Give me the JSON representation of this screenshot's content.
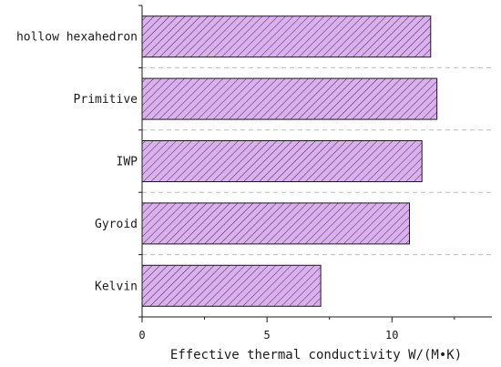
{
  "chart_data": {
    "type": "bar",
    "orientation": "horizontal",
    "categories": [
      "hollow hexahedron",
      "Primitive",
      "IWP",
      "Gyroid",
      "Kelvin"
    ],
    "values": [
      11.55,
      11.8,
      11.2,
      10.7,
      7.15
    ],
    "xlabel": "Effective thermal conductivity W/(M•K)",
    "ylabel": "",
    "xlim": [
      0,
      14
    ],
    "xticks": [
      0,
      5,
      10
    ],
    "grid": "horizontal dashed separators",
    "bar_fill": "#dcb0f0",
    "bar_hatch_color": "#333333",
    "bar_stroke": "#1a1a1a"
  }
}
